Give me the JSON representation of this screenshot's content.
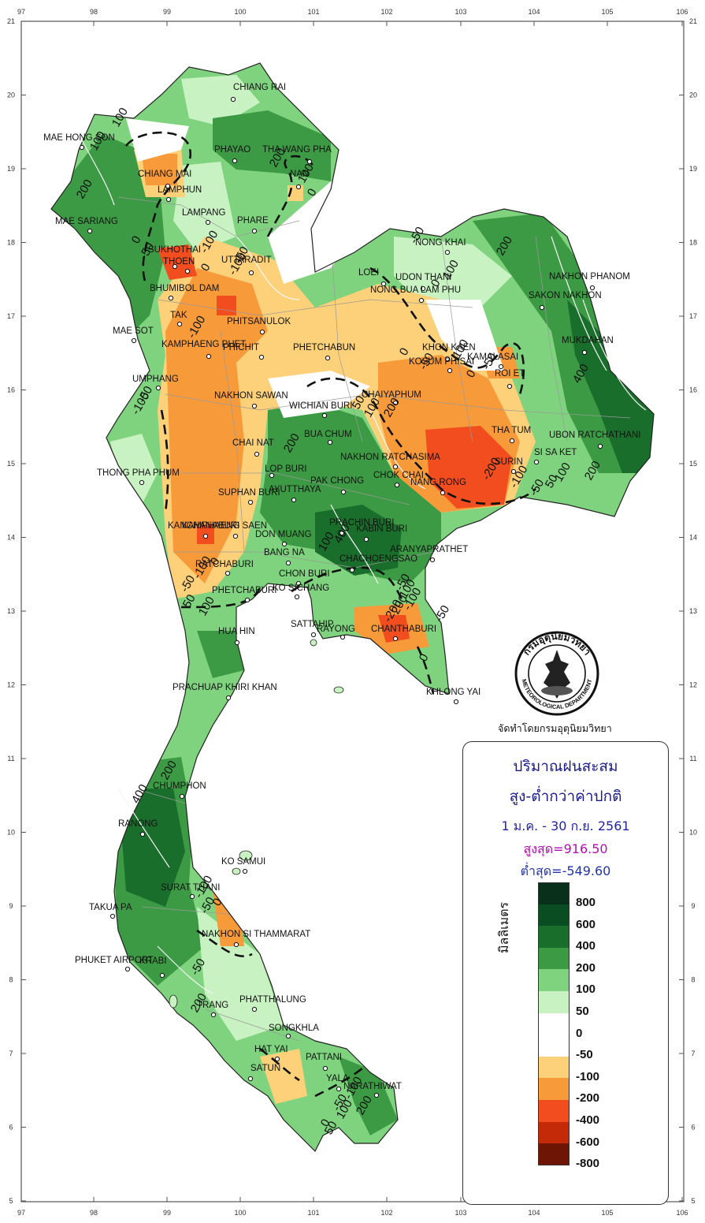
{
  "map": {
    "lon_ticks": [
      "97",
      "98",
      "99",
      "100",
      "101",
      "102",
      "103",
      "104",
      "105",
      "106"
    ],
    "lat_ticks": [
      "21",
      "20",
      "19",
      "18",
      "17",
      "16",
      "15",
      "14",
      "13",
      "12",
      "11",
      "10",
      "9",
      "8",
      "7",
      "6",
      "5"
    ],
    "cities": [
      {
        "name": "CHIANG RAI"
      },
      {
        "name": "MAE HONG SON"
      },
      {
        "name": "PHAYAO"
      },
      {
        "name": "THA WANG PHA"
      },
      {
        "name": "CHIANG MAI"
      },
      {
        "name": "NAN"
      },
      {
        "name": "LAMPHUN"
      },
      {
        "name": "LAMPANG"
      },
      {
        "name": "PHARE"
      },
      {
        "name": "MAE SARIANG"
      },
      {
        "name": "NONG KHAI"
      },
      {
        "name": "SUKHOTHAI"
      },
      {
        "name": "THOEN"
      },
      {
        "name": "UTTARADIT"
      },
      {
        "name": "LOEI"
      },
      {
        "name": "UDON THANI"
      },
      {
        "name": "NAKHON PHANOM"
      },
      {
        "name": "NONG BUA LAM PHU"
      },
      {
        "name": "BHUMIBOL DAM"
      },
      {
        "name": "SAKON NAKHON"
      },
      {
        "name": "TAK"
      },
      {
        "name": "PHITSANULOK"
      },
      {
        "name": "MAE SOT"
      },
      {
        "name": "KAMPHAENG PHET"
      },
      {
        "name": "PHICHIT"
      },
      {
        "name": "PHETCHABUN"
      },
      {
        "name": "KHON KAEN"
      },
      {
        "name": "MUKDAHAN"
      },
      {
        "name": "KOSUM PHISAI"
      },
      {
        "name": "KAMALASAI"
      },
      {
        "name": "ROI ET"
      },
      {
        "name": "UMPHANG"
      },
      {
        "name": "CHAIYAPHUM"
      },
      {
        "name": "NAKHON SAWAN"
      },
      {
        "name": "WICHIAN BURI"
      },
      {
        "name": "THA TUM"
      },
      {
        "name": "UBON RATCHATHANI"
      },
      {
        "name": "BUA CHUM"
      },
      {
        "name": "CHAI NAT"
      },
      {
        "name": "SURIN"
      },
      {
        "name": "SI SA KET"
      },
      {
        "name": "NAKHON RATCHASIMA"
      },
      {
        "name": "THONG PHA PHUM"
      },
      {
        "name": "LOP BURI"
      },
      {
        "name": "CHOK CHAI"
      },
      {
        "name": "NANG RONG"
      },
      {
        "name": "PAK CHONG"
      },
      {
        "name": "AYUTTHAYA"
      },
      {
        "name": "SUPHAN BURI"
      },
      {
        "name": "KANCHANABURI"
      },
      {
        "name": "KAMPHAENG SAEN"
      },
      {
        "name": "PRACHIN BURI"
      },
      {
        "name": "KABIN BURI"
      },
      {
        "name": "DON MUANG"
      },
      {
        "name": "ARANYAPRATHET"
      },
      {
        "name": "BANG NA"
      },
      {
        "name": "CHACHOENGSAO"
      },
      {
        "name": "RATCHABURI"
      },
      {
        "name": "CHON BURI"
      },
      {
        "name": "PHETCHABURI"
      },
      {
        "name": "KO SICHANG"
      },
      {
        "name": "SATTAHIP"
      },
      {
        "name": "RAYONG"
      },
      {
        "name": "CHANTHABURI"
      },
      {
        "name": "HUA HIN"
      },
      {
        "name": "KHLONG YAI"
      },
      {
        "name": "PRACHUAP KHIRI KHAN"
      },
      {
        "name": "CHUMPHON"
      },
      {
        "name": "RANONG"
      },
      {
        "name": "KO SAMUI"
      },
      {
        "name": "SURAT THANI"
      },
      {
        "name": "TAKUA PA"
      },
      {
        "name": "NAKHON SI THAMMARAT"
      },
      {
        "name": "PHUKET AIRPORT"
      },
      {
        "name": "KRABI"
      },
      {
        "name": "TRANG"
      },
      {
        "name": "PHATTHALUNG"
      },
      {
        "name": "SONGKHLA"
      },
      {
        "name": "HAT YAI"
      },
      {
        "name": "PATTANI"
      },
      {
        "name": "SATUN"
      },
      {
        "name": "YALA"
      },
      {
        "name": "NARATHIWAT"
      }
    ],
    "contour_labels": [
      {
        "text": "100"
      },
      {
        "text": "100"
      },
      {
        "text": "200"
      },
      {
        "text": "100"
      },
      {
        "text": "0"
      },
      {
        "text": "200"
      },
      {
        "text": "0"
      },
      {
        "text": "-50"
      },
      {
        "text": "-100"
      },
      {
        "text": "-100"
      },
      {
        "text": "0"
      },
      {
        "text": "-50"
      },
      {
        "text": "-100"
      },
      {
        "text": "-50"
      },
      {
        "text": "0"
      },
      {
        "text": "100"
      },
      {
        "text": "200"
      },
      {
        "text": "400"
      },
      {
        "text": "0"
      },
      {
        "text": "-50"
      },
      {
        "text": "-100"
      },
      {
        "text": "-50"
      },
      {
        "text": "0"
      },
      {
        "text": "-100"
      },
      {
        "text": "-50"
      },
      {
        "text": "50"
      },
      {
        "text": "100"
      },
      {
        "text": "200"
      },
      {
        "text": "-200"
      },
      {
        "text": "-100"
      },
      {
        "text": "-50"
      },
      {
        "text": "50"
      },
      {
        "text": "100"
      },
      {
        "text": "200"
      },
      {
        "text": "100"
      },
      {
        "text": "200"
      },
      {
        "text": "400"
      },
      {
        "text": "-50"
      },
      {
        "text": "-100"
      },
      {
        "text": "0"
      },
      {
        "text": "50"
      },
      {
        "text": "100"
      },
      {
        "text": "-200"
      },
      {
        "text": "-100"
      },
      {
        "text": "-50"
      },
      {
        "text": "0"
      },
      {
        "text": "200"
      },
      {
        "text": "400"
      },
      {
        "text": "-100"
      },
      {
        "text": "-50"
      },
      {
        "text": "0"
      },
      {
        "text": "-50"
      },
      {
        "text": "200"
      },
      {
        "text": "0"
      },
      {
        "text": "-50"
      },
      {
        "text": "-100"
      },
      {
        "text": "50"
      },
      {
        "text": "100"
      },
      {
        "text": "200"
      },
      {
        "text": "-50"
      },
      {
        "text": "200"
      },
      {
        "text": "100"
      }
    ]
  },
  "legend": {
    "title": "ปริมาณฝนสะสม",
    "subtitle": "สูง-ต่ำกว่าค่าปกติ",
    "period": "1 ม.ค. - 30 ก.ย. 2561",
    "max": "สูงสุด=916.50",
    "min": "ต่ำสุด=-549.60",
    "unit": "มิลลิเมตร",
    "levels": [
      "800",
      "600",
      "400",
      "200",
      "100",
      "50",
      "0",
      "-50",
      "-100",
      "-200",
      "-400",
      "-600",
      "-800"
    ],
    "colors": {
      "g800": "#08301a",
      "g600": "#0b4d22",
      "g400": "#1a6e2c",
      "g200": "#3d9a44",
      "g100": "#7fd37f",
      "g50": "#c8f2c2",
      "zero": "#ffffff",
      "o50": "#fdd07a",
      "o100": "#f79a3a",
      "o200": "#f24d1e",
      "o400": "#c42a08",
      "o600": "#6e1505"
    }
  },
  "producer": "จัดทำโดยกรมอุตุนิยมวิทยา",
  "seal": {
    "top_text": "กรมอุตุนิยมวิทยา",
    "bottom_text": "METEOROLOGICAL DEPARTMENT"
  }
}
